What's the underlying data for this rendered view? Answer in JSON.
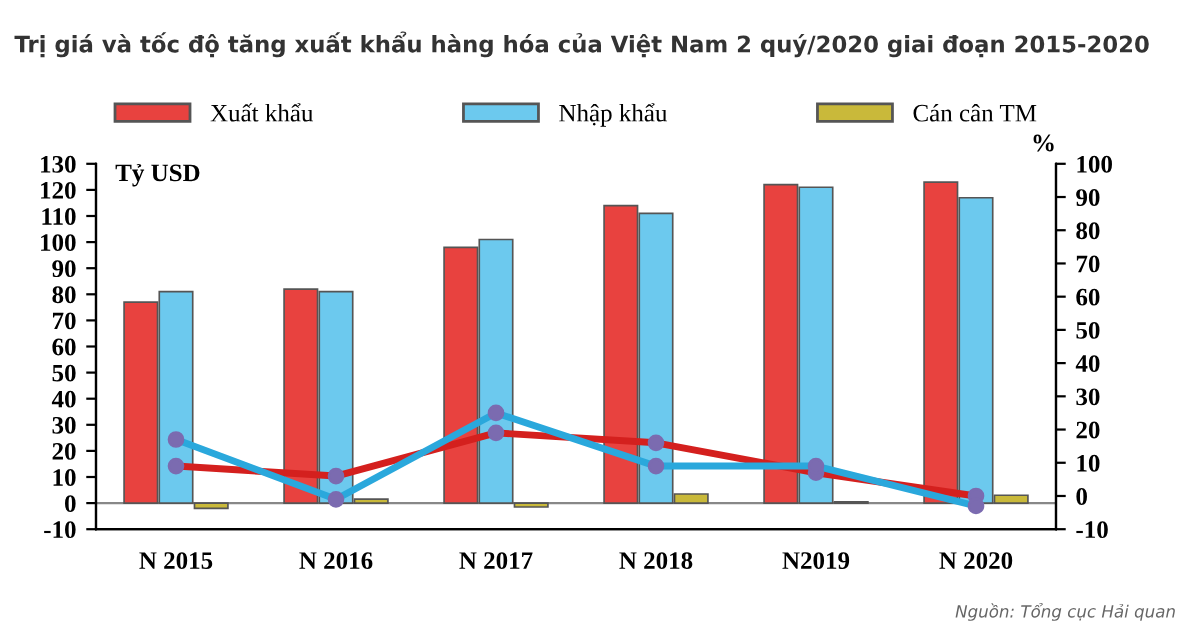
{
  "chart_data": {
    "type": "bar",
    "title": "Trị giá và tốc độ tăng xuất khẩu hàng hóa của Việt Nam 2 quý/2020 giai đoạn 2015-2020",
    "categories": [
      "N 2015",
      "N 2016",
      "N 2017",
      "N 2018",
      "N2019",
      "N 2020"
    ],
    "ylabel": "Tỷ USD",
    "y2label": "%",
    "series": [
      {
        "name": "Xuất khẩu",
        "color": "#e8423f",
        "values": [
          77,
          82,
          98,
          114,
          122,
          123
        ]
      },
      {
        "name": "Nhập khẩu",
        "color": "#6cc9ee",
        "values": [
          81,
          81,
          101,
          111,
          121,
          117
        ]
      },
      {
        "name": "Cán cân TM",
        "color": "#c9b93a",
        "values": [
          -2,
          1.5,
          -1.5,
          3.5,
          0.5,
          3
        ]
      },
      {
        "type": "line",
        "axis": "y2",
        "color": "#d4201e",
        "marker": "circle",
        "values": [
          9,
          6,
          19,
          16,
          7,
          0
        ]
      },
      {
        "type": "line",
        "axis": "y2",
        "color": "#2aa8dc",
        "marker": "circle",
        "values": [
          17,
          -1,
          25,
          9,
          9,
          -3
        ]
      }
    ],
    "ylim": [
      -10,
      130
    ],
    "yticks": [
      -10,
      0,
      10,
      20,
      30,
      40,
      50,
      60,
      70,
      80,
      90,
      100,
      110,
      120,
      130
    ],
    "y2lim": [
      -10,
      100
    ],
    "y2ticks": [
      -10,
      0,
      10,
      20,
      30,
      40,
      50,
      60,
      70,
      80,
      90,
      100
    ],
    "grid": false,
    "legend": "top",
    "ref_lines": [
      {
        "axis": "y",
        "value": 0,
        "color": "#888888"
      }
    ],
    "annotations": [
      "Nguồn: Tổng cục Hải quan"
    ]
  }
}
